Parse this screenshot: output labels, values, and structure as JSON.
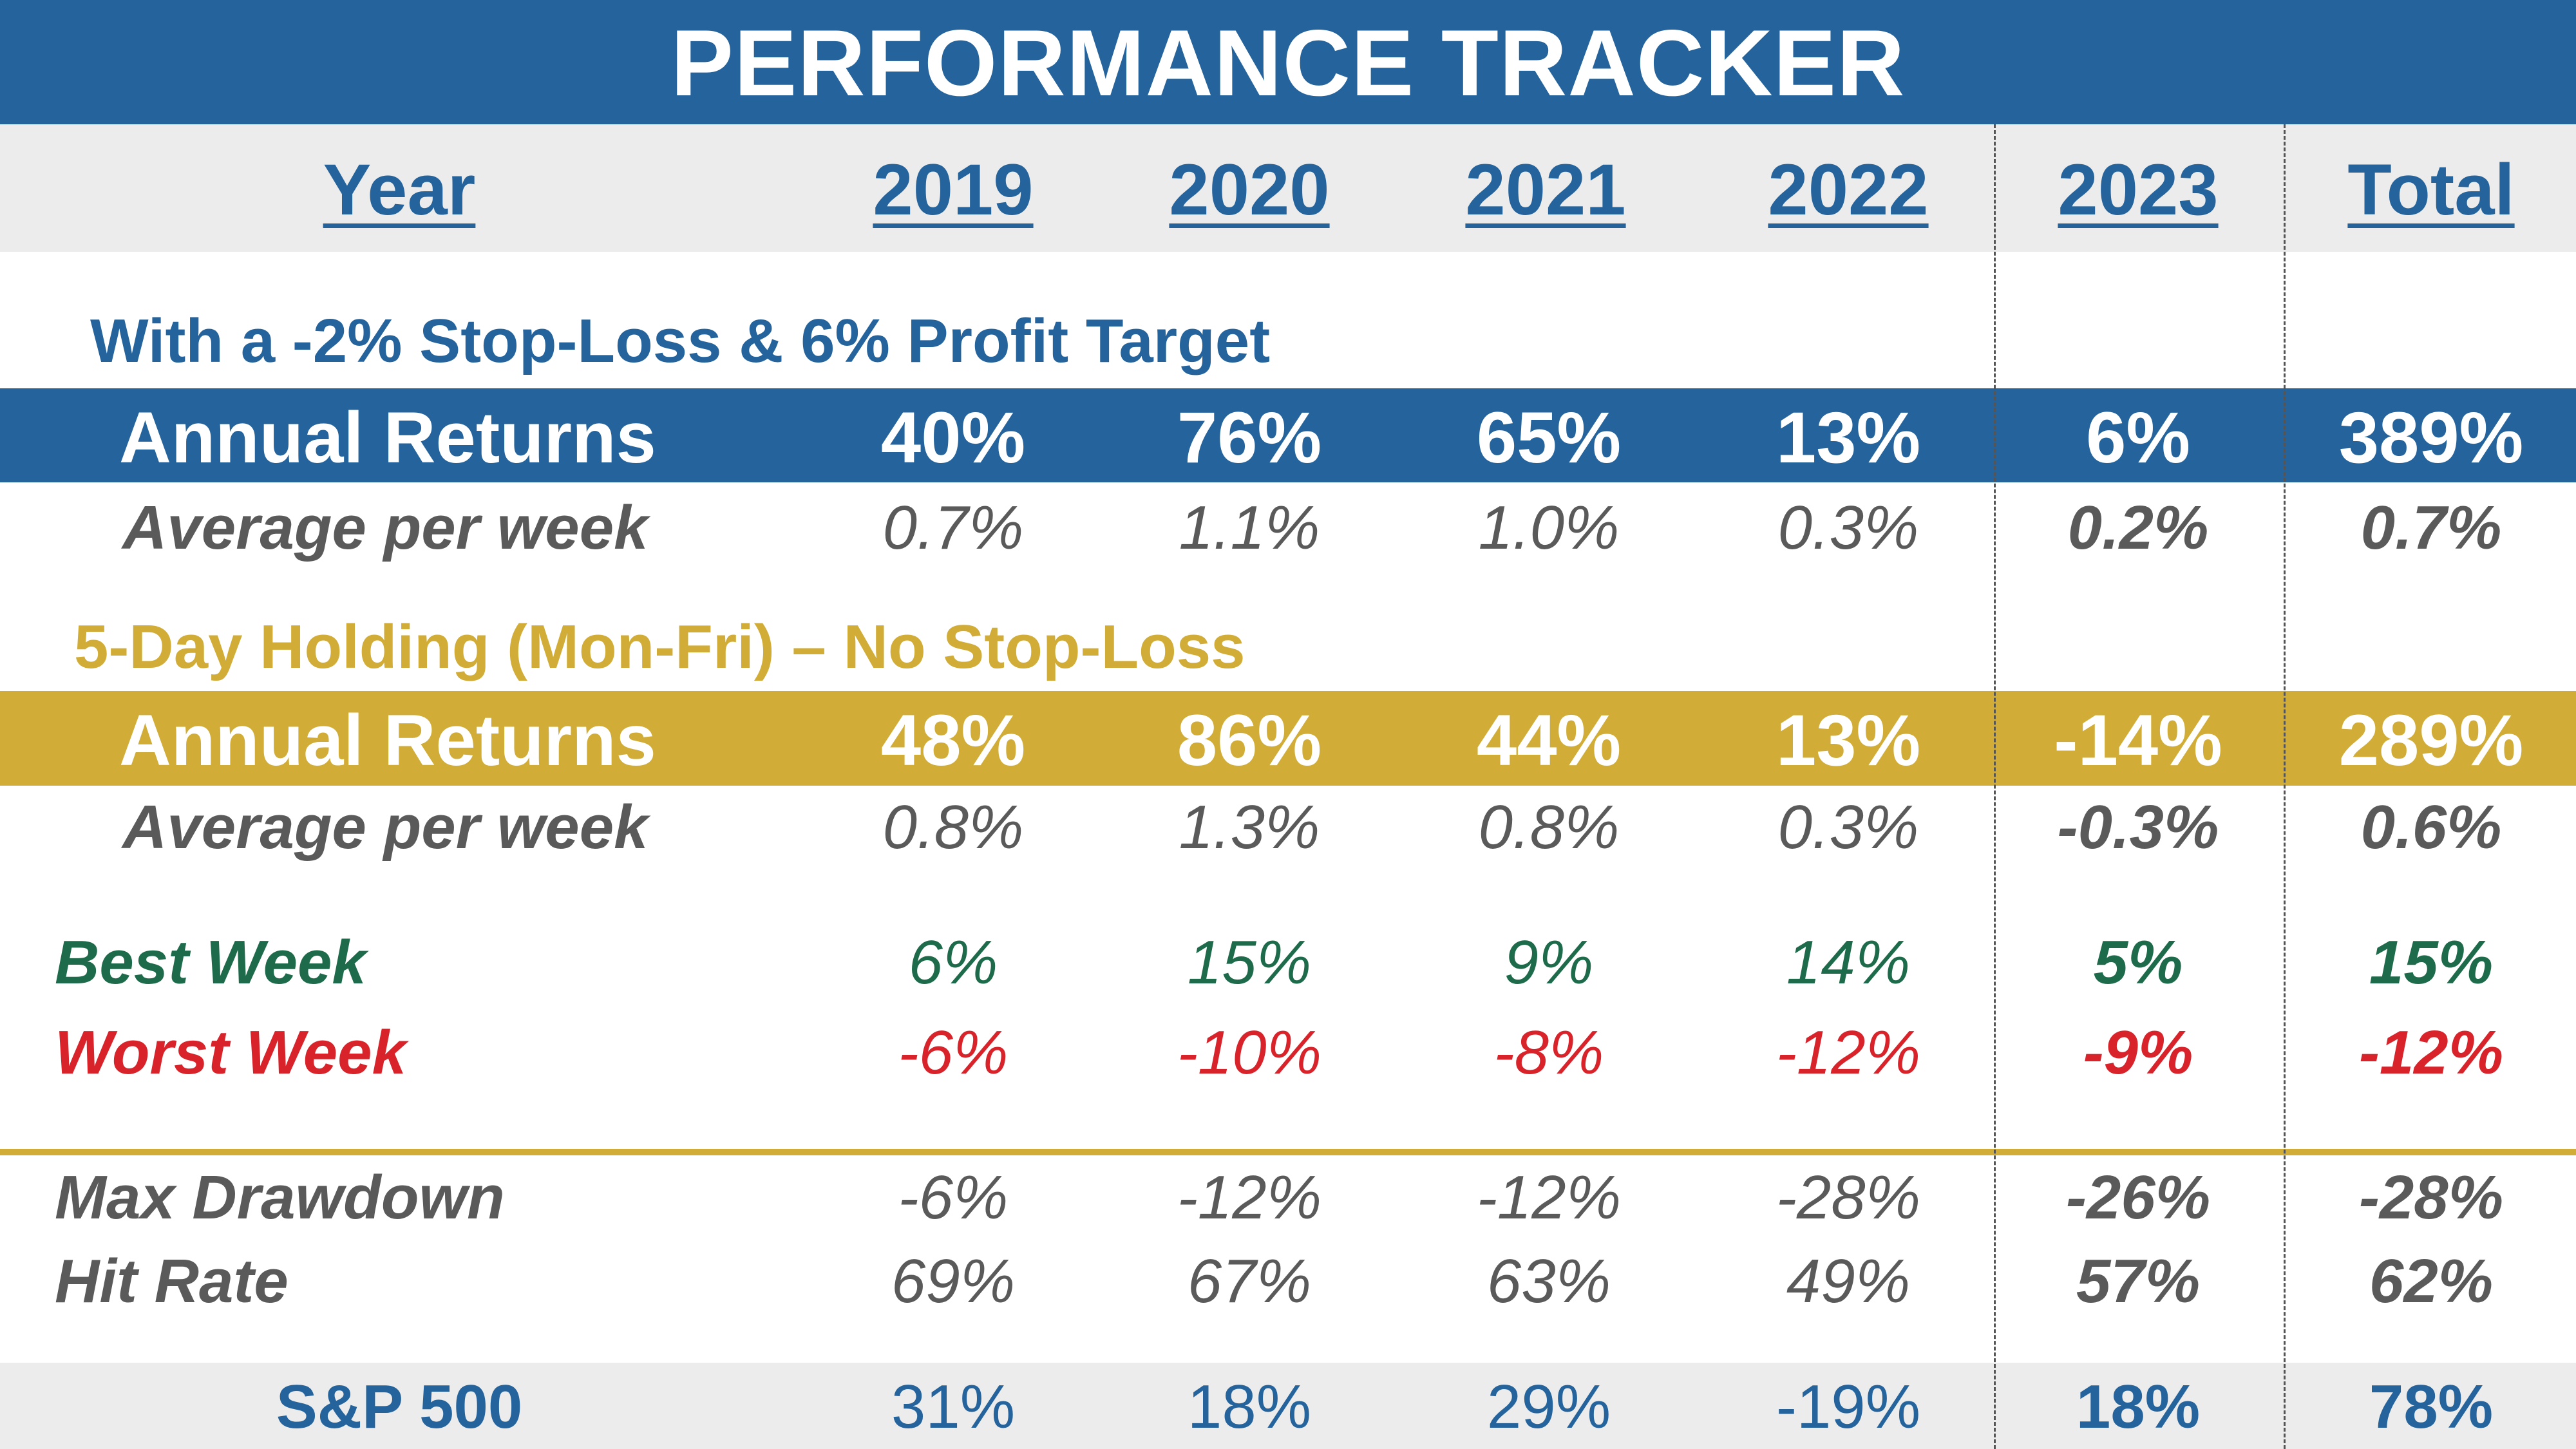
{
  "title": "PERFORMANCE TRACKER",
  "header": {
    "label": "Year",
    "years": [
      "2019",
      "2020",
      "2021",
      "2022",
      "2023",
      "Total"
    ]
  },
  "section1": {
    "title": "With a -2% Stop-Loss & 6% Profit Target",
    "annual_label": "Annual Returns",
    "annual": [
      "40%",
      "76%",
      "65%",
      "13%",
      "6%",
      "389%"
    ],
    "weekly_label": "Average per week",
    "weekly": [
      "0.7%",
      "1.1%",
      "1.0%",
      "0.3%",
      "0.2%",
      "0.7%"
    ]
  },
  "section2": {
    "title": "5-Day Holding (Mon-Fri) – No Stop-Loss",
    "annual_label": "Annual Returns",
    "annual": [
      "48%",
      "86%",
      "44%",
      "13%",
      "-14%",
      "289%"
    ],
    "weekly_label": "Average per week",
    "weekly": [
      "0.8%",
      "1.3%",
      "0.8%",
      "0.3%",
      "-0.3%",
      "0.6%"
    ]
  },
  "best": {
    "label": "Best Week",
    "values": [
      "6%",
      "15%",
      "9%",
      "14%",
      "5%",
      "15%"
    ]
  },
  "worst": {
    "label": "Worst Week",
    "values": [
      "-6%",
      "-10%",
      "-8%",
      "-12%",
      "-9%",
      "-12%"
    ]
  },
  "drawdown": {
    "label": "Max Drawdown",
    "values": [
      "-6%",
      "-12%",
      "-12%",
      "-28%",
      "-26%",
      "-28%"
    ]
  },
  "hitrate": {
    "label": "Hit Rate",
    "values": [
      "69%",
      "67%",
      "63%",
      "49%",
      "57%",
      "62%"
    ]
  },
  "sp500": {
    "label": "S&P 500",
    "values": [
      "31%",
      "18%",
      "29%",
      "-19%",
      "18%",
      "78%"
    ]
  },
  "colors": {
    "blue": "#24639c",
    "gold": "#d1ad37",
    "green": "#1e6b4b",
    "red": "#d8232a",
    "gray_band": "#ececec"
  }
}
